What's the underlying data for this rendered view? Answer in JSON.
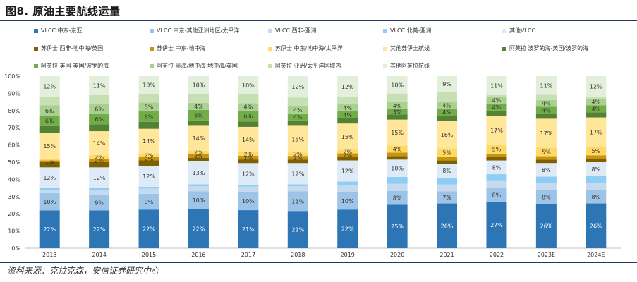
{
  "title": "图8. 原油主要航线运量",
  "source": "资料来源：克拉克森，安信证券研究中心",
  "chart_data": {
    "type": "bar",
    "stacked": true,
    "categories": [
      "2013",
      "2014",
      "2015",
      "2016",
      "2017",
      "2018",
      "2019",
      "2020",
      "2021",
      "2022",
      "2023E",
      "2024E"
    ],
    "ylim": [
      0,
      100
    ],
    "yticks": [
      "0%",
      "10%",
      "20%",
      "30%",
      "40%",
      "50%",
      "60%",
      "70%",
      "80%",
      "90%",
      "100%"
    ],
    "series": [
      {
        "name": "VLCC 中东-东亚",
        "color": "#2e75b6",
        "values": [
          22,
          22,
          22,
          22,
          21,
          21,
          22,
          25,
          26,
          27,
          26,
          26
        ],
        "labels": [
          "22%",
          "22%",
          "22%",
          "22%",
          "21%",
          "21%",
          "22%",
          "25%",
          "26%",
          "27%",
          "26%",
          "26%"
        ]
      },
      {
        "name": "VLCC 中东-其他亚洲地区/太平洋",
        "color": "#9dc3e6",
        "values": [
          10,
          9,
          9,
          10,
          10,
          11,
          10,
          8,
          7,
          8,
          8,
          8
        ],
        "labels": [
          "10%",
          "9%",
          "9%",
          "10%",
          "10%",
          "11%",
          "10%",
          "8%",
          "7%",
          "8%",
          "8%",
          "8%"
        ]
      },
      {
        "name": "VLCC 西非-亚洲",
        "color": "#c5d9ef",
        "values": [
          2,
          3,
          3,
          3,
          3,
          3,
          4,
          4,
          4,
          4,
          4,
          4
        ],
        "labels": [
          "",
          "",
          "",
          "",
          "",
          "",
          "",
          "",
          "",
          "",
          "",
          ""
        ]
      },
      {
        "name": "VLCC 北美-亚洲",
        "color": "#8fcdf5",
        "values": [
          1,
          1,
          1,
          1,
          1,
          1,
          2,
          4,
          4,
          4,
          4,
          4
        ],
        "labels": [
          "",
          "",
          "",
          "",
          "",
          "",
          "",
          "",
          "",
          "",
          "",
          ""
        ]
      },
      {
        "name": "其他VLCC",
        "color": "#deebf7",
        "values": [
          12,
          12,
          12,
          13,
          12,
          12,
          12,
          10,
          8,
          8,
          8,
          8
        ],
        "labels": [
          "12%",
          "12%",
          "12%",
          "13%",
          "12%",
          "12%",
          "12%",
          "10%",
          "8%",
          "8%",
          "8%",
          "8%"
        ]
      },
      {
        "name": "苏伊士 西非-地中海/英国",
        "color": "#7f6000",
        "values": [
          3,
          3,
          3,
          2,
          2,
          2,
          2,
          2,
          2,
          2,
          2,
          2
        ],
        "labels": [
          "",
          "",
          "",
          "",
          "",
          "",
          "",
          "",
          "",
          "",
          "",
          ""
        ]
      },
      {
        "name": "苏伊士 中东-地中海",
        "color": "#c9940d",
        "values": [
          1,
          2,
          2,
          2,
          2,
          2,
          2,
          2,
          2,
          2,
          2,
          2
        ],
        "labels": [
          "1%",
          "2%",
          "2%",
          "2%",
          "2%",
          "2%",
          "2%",
          "",
          "",
          "",
          "",
          ""
        ]
      },
      {
        "name": "苏伊士 中东/地中海/太平洋",
        "color": "#ffd966",
        "values": [
          1,
          2,
          2,
          2,
          2,
          2,
          2,
          4,
          5,
          5,
          5,
          5
        ],
        "labels": [
          "",
          "2%",
          "2%",
          "2%",
          "2%",
          "2%",
          "2%",
          "4%",
          "5%",
          "5%",
          "5%",
          "5%"
        ]
      },
      {
        "name": "其他苏伊士航线",
        "color": "#ffe699",
        "values": [
          15,
          14,
          14,
          14,
          14,
          15,
          15,
          15,
          16,
          17,
          17,
          17
        ],
        "labels": [
          "15%",
          "14%",
          "14%",
          "14%",
          "14%",
          "15%",
          "15%",
          "15%",
          "16%",
          "17%",
          "17%",
          "17%"
        ]
      },
      {
        "name": "阿芙拉 波罗的海-英国/波罗的海",
        "color": "#548235",
        "values": [
          4,
          4,
          4,
          3,
          3,
          3,
          3,
          3,
          3,
          3,
          3,
          3
        ],
        "labels": [
          "",
          "",
          "",
          "",
          "",
          "",
          "",
          "",
          "",
          "",
          "",
          ""
        ]
      },
      {
        "name": "阿芙拉 英国-英国/波罗的海",
        "color": "#70ad47",
        "values": [
          6,
          6,
          6,
          6,
          6,
          4,
          4,
          3,
          4,
          4,
          4,
          4
        ],
        "labels": [
          "6%",
          "6%",
          "6%",
          "6%",
          "6%",
          "4%",
          "4%",
          "3%",
          "4%",
          "4%",
          "4%",
          "4%"
        ]
      },
      {
        "name": "阿芙拉 黑海/地中海-地中海/英国",
        "color": "#a9d08e",
        "values": [
          6,
          6,
          5,
          4,
          4,
          4,
          4,
          4,
          4,
          4,
          4,
          4
        ],
        "labels": [
          "6%",
          "6%",
          "5%",
          "4%",
          "4%",
          "4%",
          "4%",
          "4%",
          "4%",
          "4%",
          "4%",
          "4%"
        ]
      },
      {
        "name": "阿芙拉 亚洲/太平洋区域内",
        "color": "#c6e0b4",
        "values": [
          5,
          5,
          5,
          5,
          5,
          5,
          4,
          5,
          6,
          1,
          3,
          1
        ],
        "labels": [
          "",
          "",
          "",
          "",
          "",
          "",
          "",
          "",
          "",
          "",
          "",
          ""
        ]
      },
      {
        "name": "其他阿芙拉航线",
        "color": "#e2efda",
        "values": [
          12,
          11,
          10,
          10,
          10,
          12,
          12,
          10,
          9,
          11,
          11,
          12
        ],
        "labels": [
          "12%",
          "11%",
          "10%",
          "10%",
          "10%",
          "12%",
          "12%",
          "10%",
          "9%",
          "11%",
          "11%",
          "12%"
        ]
      }
    ]
  }
}
